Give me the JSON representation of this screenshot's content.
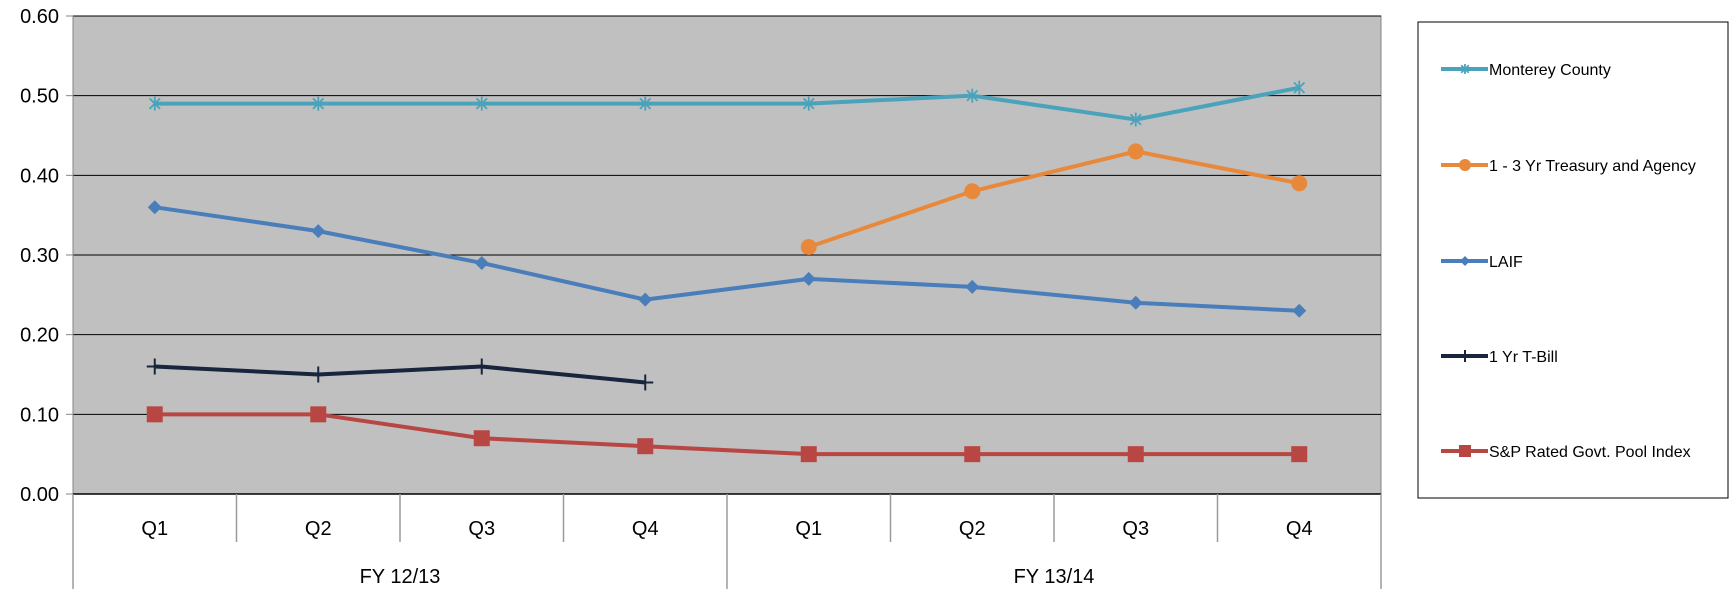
{
  "chart_data": {
    "type": "line",
    "categories": [
      "Q1",
      "Q2",
      "Q3",
      "Q4",
      "Q1",
      "Q2",
      "Q3",
      "Q4"
    ],
    "category_groups": [
      {
        "label": "FY 12/13",
        "count": 4
      },
      {
        "label": "FY 13/14",
        "count": 4
      }
    ],
    "ylim": [
      0,
      0.6
    ],
    "yticks": [
      "0.00",
      "0.10",
      "0.20",
      "0.30",
      "0.40",
      "0.50",
      "0.60"
    ],
    "grid": true,
    "legend_position": "right",
    "plot_background": "#c0c0c0",
    "series": [
      {
        "name": "Monterey County",
        "color": "#4aa3ba",
        "marker": "asterisk",
        "values": [
          0.49,
          0.49,
          0.49,
          0.49,
          0.49,
          0.5,
          0.47,
          0.51
        ]
      },
      {
        "name": "1 - 3 Yr Treasury and Agency",
        "color": "#e8883a",
        "marker": "circle",
        "values": [
          null,
          null,
          null,
          null,
          0.31,
          0.38,
          0.43,
          0.39
        ]
      },
      {
        "name": "LAIF",
        "color": "#4a7ebb",
        "marker": "diamond",
        "values": [
          0.36,
          0.33,
          0.29,
          0.244,
          0.27,
          0.26,
          0.24,
          0.23
        ]
      },
      {
        "name": "1 Yr T-Bill",
        "color": "#17253d",
        "marker": "plus",
        "values": [
          0.16,
          0.15,
          0.16,
          0.14,
          null,
          null,
          null,
          null
        ]
      },
      {
        "name": "S&P Rated Govt. Pool Index",
        "color": "#b84744",
        "marker": "square",
        "values": [
          0.1,
          0.1,
          0.07,
          0.06,
          0.05,
          0.05,
          0.05,
          0.05
        ]
      }
    ]
  }
}
